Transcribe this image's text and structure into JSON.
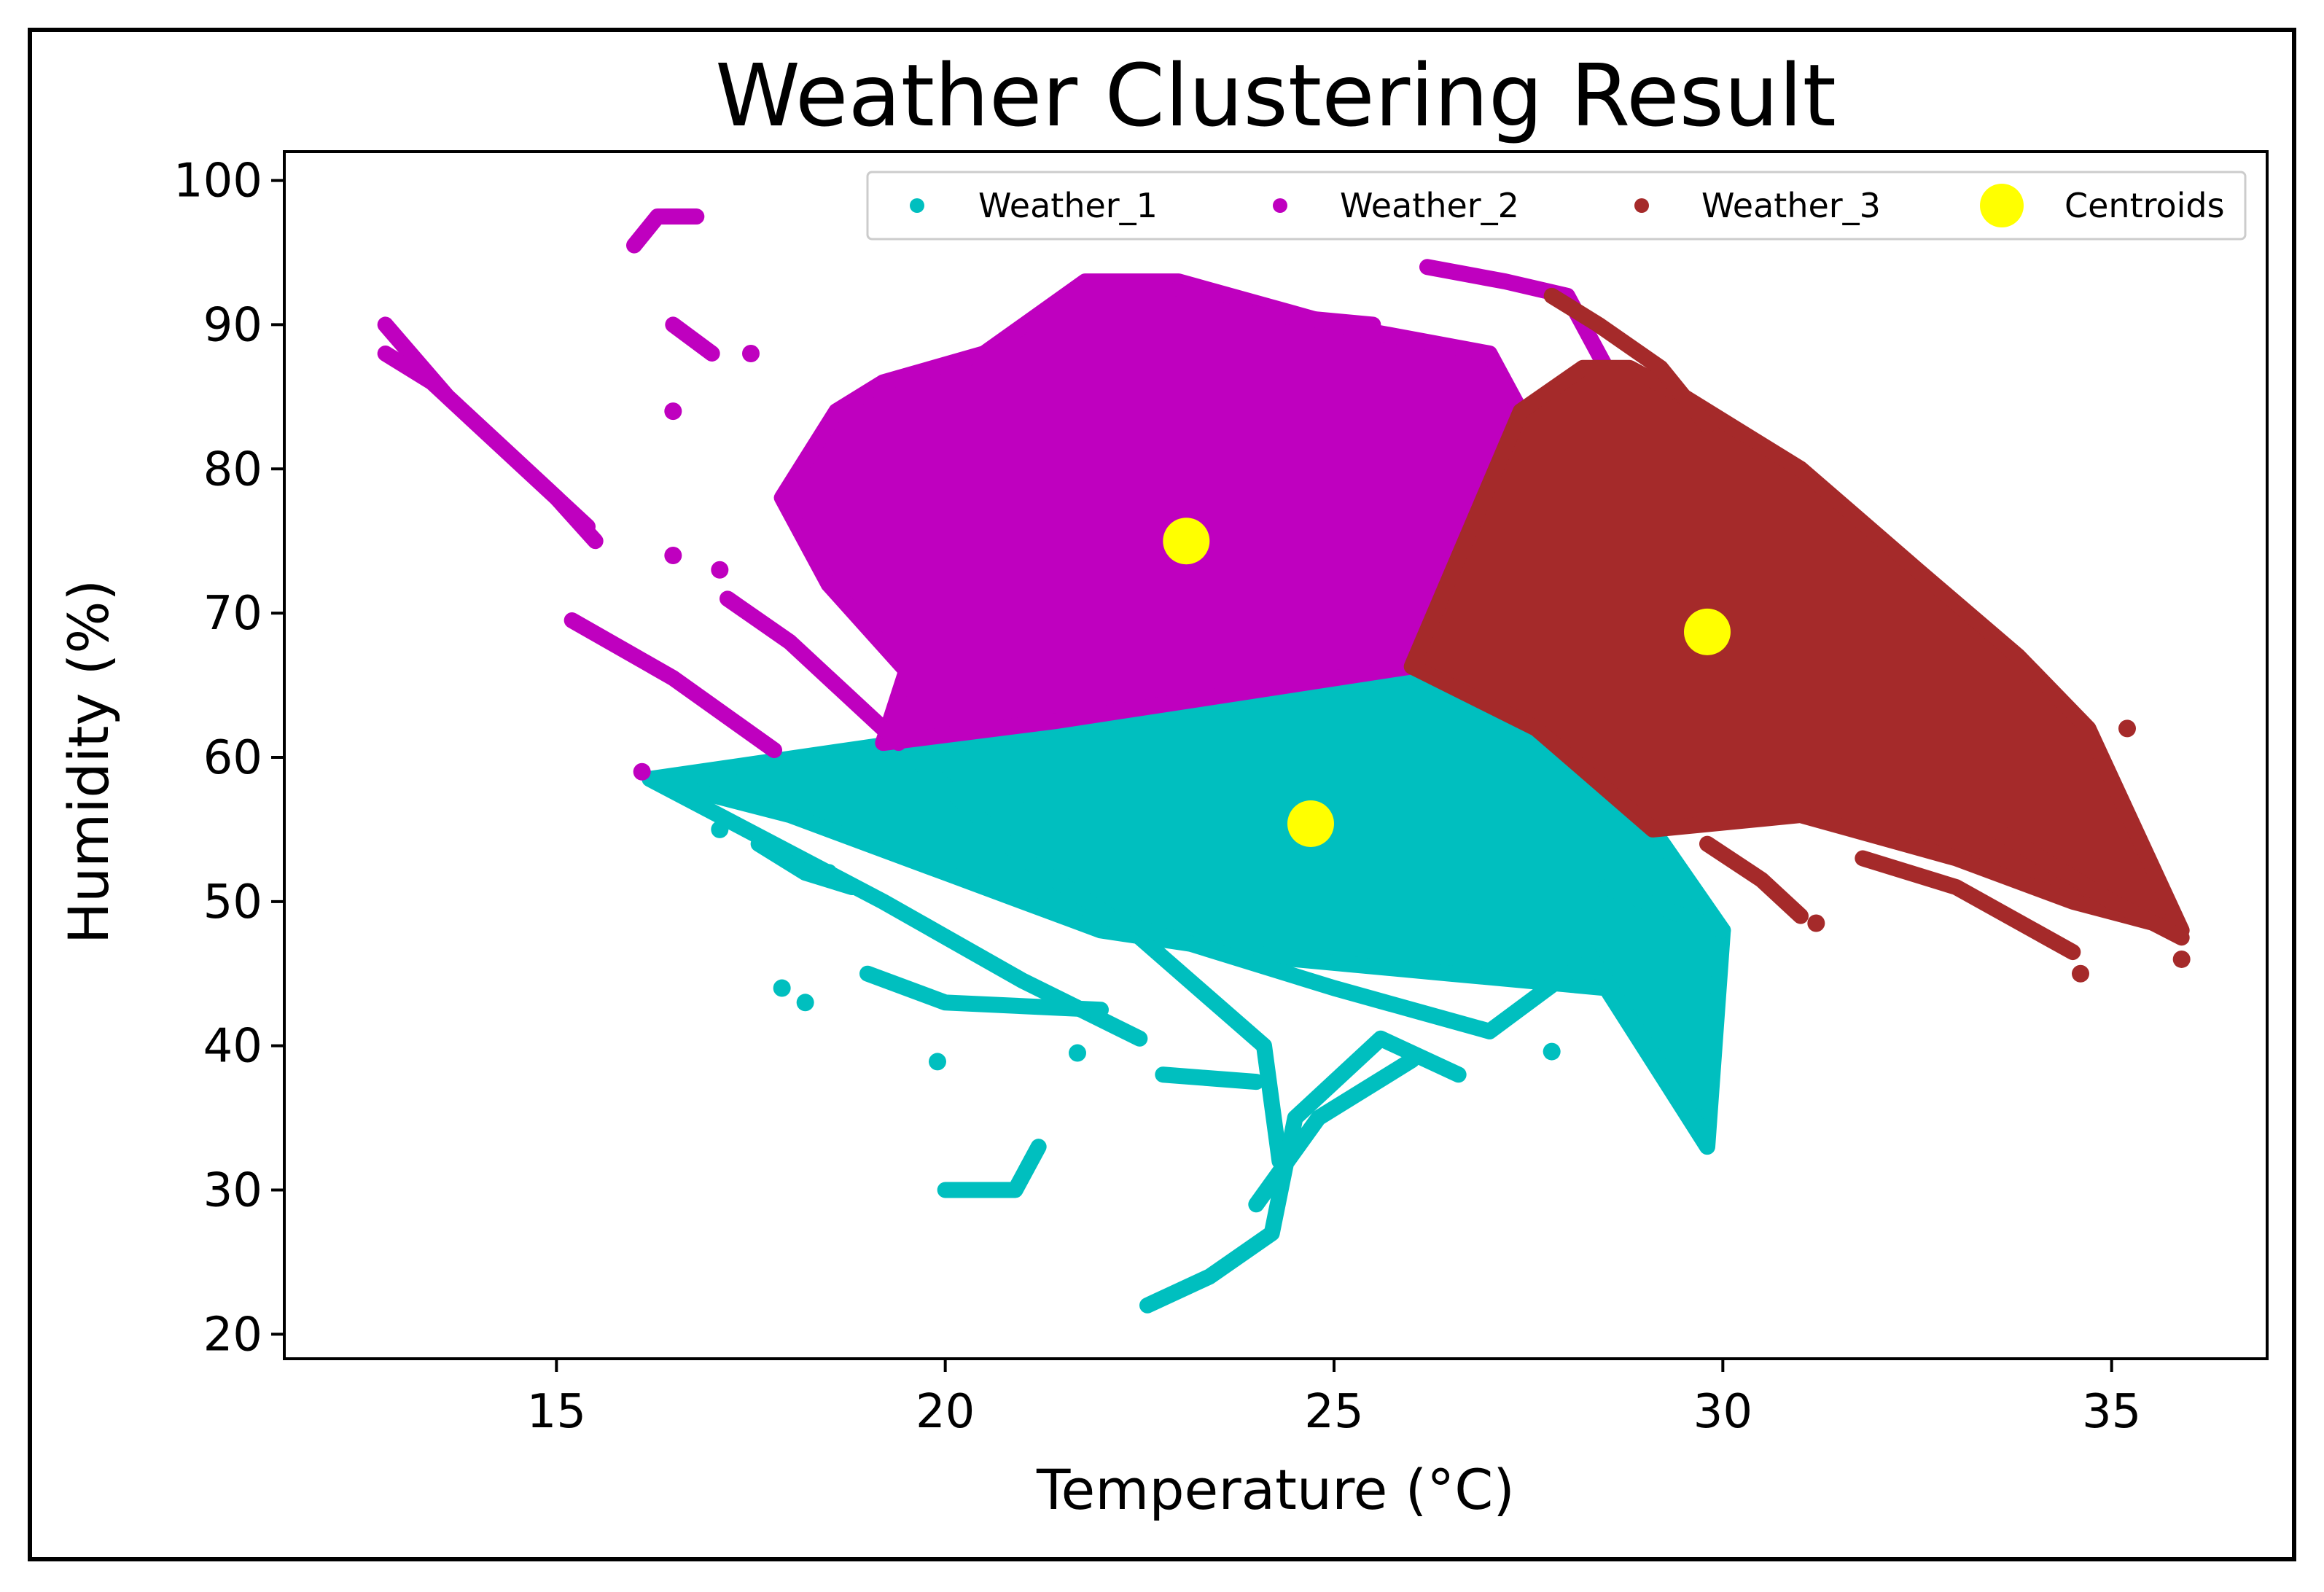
{
  "chart_data": {
    "type": "scatter",
    "title": "Weather Clustering Result",
    "xlabel": "Temperature (°C)",
    "ylabel": "Humidity (%)",
    "xlim": [
      11.5,
      37.0
    ],
    "ylim": [
      18.3,
      102.0
    ],
    "xticks": [
      15,
      20,
      25,
      30,
      35
    ],
    "yticks": [
      20,
      30,
      40,
      50,
      60,
      70,
      80,
      90,
      100
    ],
    "grid": false,
    "legend_position": "top-right",
    "series": [
      {
        "name": "Weather_1",
        "color": "#00BFBF",
        "description_polygons": [
          [
            [
              16.2,
              58.5
            ],
            [
              19.4,
              61.0
            ],
            [
              21.4,
              62.5
            ],
            [
              26.0,
              66.3
            ],
            [
              27.6,
              62.0
            ],
            [
              29.1,
              55.0
            ],
            [
              30.0,
              48.0
            ],
            [
              29.8,
              33.0
            ],
            [
              28.5,
              44.0
            ],
            [
              26.5,
              45.0
            ],
            [
              24.5,
              46.0
            ],
            [
              22.0,
              48.0
            ],
            [
              20.0,
              52.0
            ],
            [
              18.0,
              56.0
            ]
          ]
        ],
        "strokes": [
          [
            [
              16.2,
              58.5
            ],
            [
              19.2,
              50.0
            ],
            [
              21.0,
              44.5
            ],
            [
              22.5,
              40.5
            ]
          ],
          [
            [
              19.4,
              61.0
            ],
            [
              21.0,
              53.0
            ],
            [
              22.4,
              48.0
            ],
            [
              24.1,
              40.0
            ],
            [
              24.3,
              32.0
            ]
          ],
          [
            [
              22.6,
              22.0
            ],
            [
              23.4,
              24.0
            ],
            [
              24.2,
              27.0
            ],
            [
              24.5,
              35.0
            ],
            [
              25.6,
              40.5
            ],
            [
              26.6,
              38.0
            ]
          ],
          [
            [
              24.0,
              29.0
            ],
            [
              24.8,
              35.0
            ],
            [
              26.0,
              39.0
            ]
          ],
          [
            [
              20.0,
              30.0
            ],
            [
              20.9,
              30.0
            ],
            [
              21.2,
              33.0
            ]
          ],
          [
            [
              22.0,
              49.0
            ],
            [
              25.0,
              44.0
            ],
            [
              27.0,
              41.0
            ],
            [
              28.0,
              45.0
            ]
          ],
          [
            [
              26.8,
              49.5
            ],
            [
              28.2,
              47.0
            ],
            [
              29.8,
              33.5
            ]
          ],
          [
            [
              19.0,
              45.0
            ],
            [
              20.0,
              43.0
            ],
            [
              22.0,
              42.5
            ]
          ],
          [
            [
              17.6,
              54.0
            ],
            [
              18.2,
              52.0
            ],
            [
              18.8,
              51.0
            ]
          ],
          [
            [
              22.8,
              38.0
            ],
            [
              24.0,
              37.5
            ]
          ],
          [
            [
              28.5,
              51.0
            ],
            [
              30.0,
              48.0
            ]
          ]
        ],
        "scattered_points": [
          [
            17.9,
            44.0
          ],
          [
            18.2,
            43.0
          ],
          [
            19.9,
            38.9
          ],
          [
            27.8,
            39.6
          ],
          [
            20.9,
            57.0
          ],
          [
            17.1,
            55.0
          ],
          [
            18.5,
            52.0
          ],
          [
            21.7,
            39.5
          ]
        ]
      },
      {
        "name": "Weather_2",
        "color": "#BF00BF",
        "description_polygons": [
          [
            [
              19.2,
              61.0
            ],
            [
              21.4,
              62.5
            ],
            [
              26.0,
              66.3
            ],
            [
              27.4,
              84.0
            ],
            [
              27.0,
              88.0
            ],
            [
              25.0,
              90.0
            ],
            [
              23.0,
              93.0
            ],
            [
              21.8,
              93.0
            ],
            [
              20.5,
              88.0
            ],
            [
              19.2,
              86.0
            ],
            [
              18.6,
              84.0
            ],
            [
              17.9,
              78.0
            ],
            [
              18.5,
              72.0
            ],
            [
              19.5,
              66.0
            ]
          ]
        ],
        "strokes": [
          [
            [
              12.8,
              90.0
            ],
            [
              13.6,
              85.0
            ],
            [
              15.0,
              78.0
            ],
            [
              15.5,
              75.0
            ]
          ],
          [
            [
              12.8,
              88.0
            ],
            [
              13.4,
              86.0
            ],
            [
              14.5,
              80.5
            ],
            [
              15.4,
              76.0
            ]
          ],
          [
            [
              15.2,
              69.5
            ],
            [
              16.5,
              65.5
            ],
            [
              17.8,
              60.5
            ]
          ],
          [
            [
              16.0,
              95.5
            ],
            [
              16.3,
              97.5
            ],
            [
              16.8,
              97.5
            ]
          ],
          [
            [
              17.2,
              71.0
            ],
            [
              18.0,
              68.0
            ],
            [
              19.4,
              61.0
            ]
          ],
          [
            [
              26.2,
              94.0
            ],
            [
              27.2,
              93.0
            ],
            [
              28.0,
              92.0
            ],
            [
              28.6,
              86.0
            ]
          ],
          [
            [
              23.0,
              92.5
            ],
            [
              23.5,
              91.0
            ],
            [
              25.5,
              90.0
            ]
          ],
          [
            [
              16.5,
              90.0
            ],
            [
              17.0,
              88.0
            ]
          ]
        ],
        "scattered_points": [
          [
            16.1,
            59.0
          ],
          [
            16.5,
            74.0
          ],
          [
            17.1,
            73.0
          ],
          [
            17.5,
            88.0
          ],
          [
            16.5,
            84.0
          ]
        ]
      },
      {
        "name": "Weather_3",
        "color": "#A52A2A",
        "description_polygons": [
          [
            [
              26.0,
              66.3
            ],
            [
              27.4,
              84.0
            ],
            [
              28.2,
              87.0
            ],
            [
              28.8,
              87.0
            ],
            [
              29.5,
              85.0
            ],
            [
              31.0,
              80.0
            ],
            [
              32.5,
              73.0
            ],
            [
              33.8,
              67.0
            ],
            [
              34.7,
              62.0
            ],
            [
              35.9,
              48.0
            ],
            [
              34.5,
              50.0
            ],
            [
              33.0,
              53.0
            ],
            [
              31.0,
              56.0
            ],
            [
              29.1,
              55.0
            ],
            [
              27.6,
              62.0
            ]
          ]
        ],
        "strokes": [
          [
            [
              27.8,
              92.0
            ],
            [
              28.4,
              90.0
            ],
            [
              29.2,
              87.0
            ],
            [
              29.8,
              83.0
            ]
          ],
          [
            [
              29.8,
              54.0
            ],
            [
              30.5,
              51.5
            ],
            [
              31.0,
              49.0
            ]
          ],
          [
            [
              31.8,
              53.0
            ],
            [
              33.0,
              51.0
            ],
            [
              34.5,
              46.5
            ]
          ],
          [
            [
              33.5,
              55.0
            ],
            [
              35.0,
              50.0
            ],
            [
              35.9,
              47.5
            ]
          ]
        ],
        "scattered_points": [
          [
            35.9,
            46.0
          ],
          [
            34.6,
            45.0
          ],
          [
            35.2,
            62.0
          ],
          [
            31.2,
            48.5
          ]
        ]
      },
      {
        "name": "Centroids",
        "color": "#FFFF00",
        "points": [
          [
            23.1,
            75.0
          ],
          [
            29.8,
            68.7
          ],
          [
            24.7,
            55.4
          ]
        ]
      }
    ]
  }
}
